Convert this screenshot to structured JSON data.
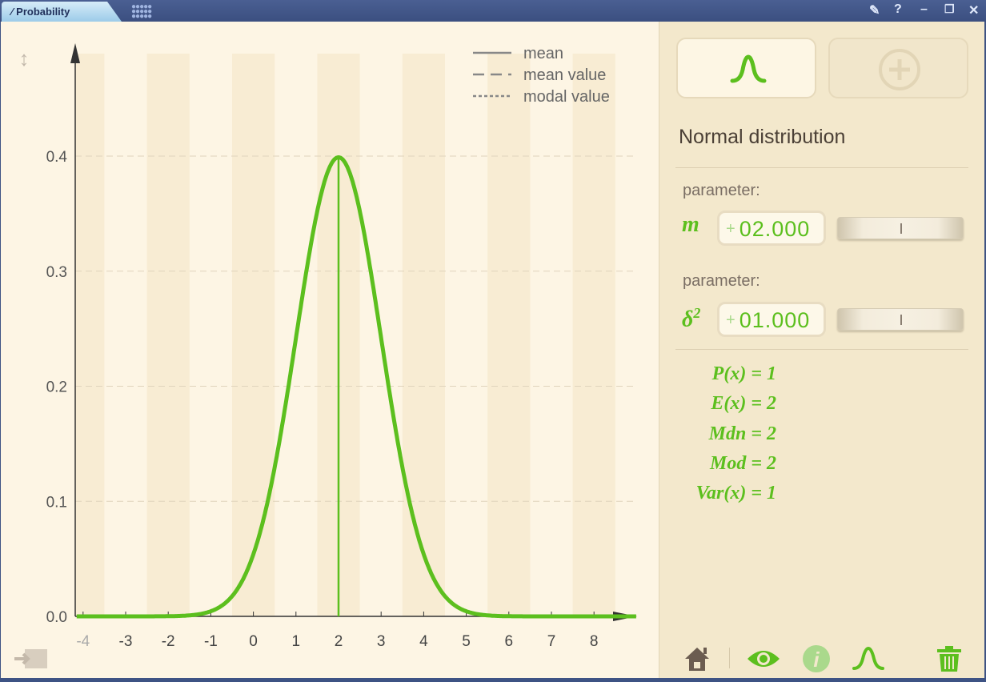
{
  "window": {
    "tab_title": "Probability"
  },
  "panel": {
    "distribution_name": "Normal distribution",
    "params": [
      {
        "label": "parameter:",
        "symbol": "m",
        "sign": "+",
        "value": "02.000",
        "slider_fraction": 0.5
      },
      {
        "label": "parameter:",
        "symbol": "δ",
        "superscript": "2",
        "sign": "+",
        "value": "01.000",
        "slider_fraction": 0.5
      }
    ],
    "stats": [
      "P(x) = 1",
      "E(x) = 2",
      "Mdn = 2",
      "Mod = 2",
      "Var(x) = 1"
    ],
    "accent": "#5cbf1e"
  },
  "chart_data": {
    "type": "line",
    "title": "",
    "xlabel": "",
    "ylabel": "",
    "xlim": [
      -4.15,
      9.0
    ],
    "ylim": [
      0,
      0.45
    ],
    "x_ticks": [
      -4,
      -3,
      -2,
      -1,
      0,
      1,
      2,
      3,
      4,
      5,
      6,
      7,
      8
    ],
    "y_ticks": [
      0.0,
      0.1,
      0.2,
      0.3,
      0.4
    ],
    "y_tick_labels": [
      "0.0",
      "0.1",
      "0.2",
      "0.3",
      "0.4"
    ],
    "grid": "horizontal dashed",
    "legend": {
      "placement": "top-right",
      "entries": [
        {
          "style": "solid",
          "label": "mean"
        },
        {
          "style": "dashed",
          "label": "mean value"
        },
        {
          "style": "dotted",
          "label": "modal value"
        }
      ]
    },
    "series": [
      {
        "distribution": "normal",
        "mu": 2,
        "sigma2": 1,
        "color": "#5cbf1e"
      }
    ],
    "mean_line_x": 2
  }
}
